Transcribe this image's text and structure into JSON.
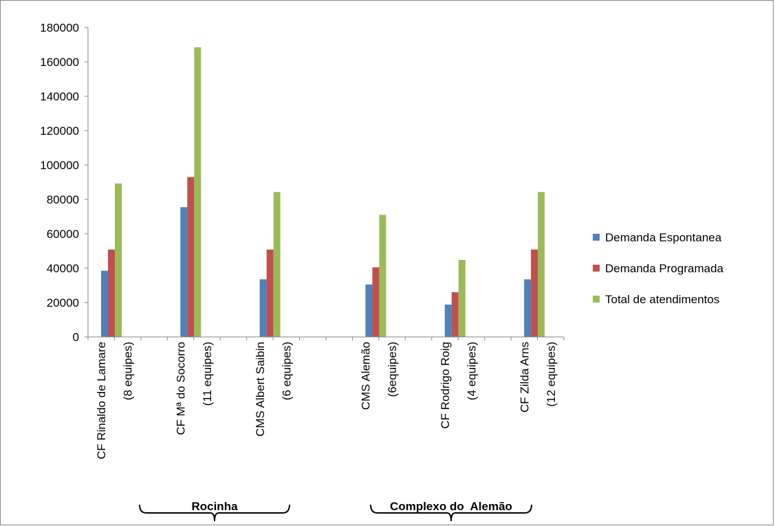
{
  "chart_data": {
    "type": "bar",
    "title": "",
    "xlabel": "",
    "ylabel": "",
    "ylim": [
      0,
      180000
    ],
    "yticks": [
      0,
      20000,
      40000,
      60000,
      80000,
      100000,
      120000,
      140000,
      160000,
      180000
    ],
    "grid": false,
    "legend_position": "right",
    "categories": [
      "CF Rinaldo de Lamare",
      "(8 equipes)",
      "",
      "CF Mª do Socorro",
      "(11 equipes)",
      "",
      "CMS Albert Saibin",
      "(6 equipes)",
      "",
      "",
      "CMS Alemão",
      "(6equipes)",
      "",
      "CF Rodrigo Roig",
      "(4 equipes)",
      "",
      "CF Zilda Arns",
      "(12 equipes)"
    ],
    "series": [
      {
        "name": "Demanda Espontanea",
        "color": "#4F81BD",
        "values": [
          38500,
          null,
          null,
          75500,
          null,
          null,
          33500,
          null,
          null,
          null,
          30500,
          null,
          null,
          18800,
          null,
          null,
          33500,
          null
        ]
      },
      {
        "name": "Demanda Programada",
        "color": "#C0504D",
        "values": [
          50800,
          null,
          null,
          93000,
          null,
          null,
          50800,
          null,
          null,
          null,
          40500,
          null,
          null,
          26000,
          null,
          null,
          50800,
          null
        ]
      },
      {
        "name": "Total de atendimentos",
        "color": "#9BBB59",
        "values": [
          89300,
          null,
          null,
          168500,
          null,
          null,
          84300,
          null,
          null,
          null,
          71000,
          null,
          null,
          44800,
          null,
          null,
          84300,
          null
        ]
      }
    ],
    "groups": [
      {
        "label": "Rocinha"
      },
      {
        "label": "Complexo do  Alemão"
      }
    ]
  }
}
